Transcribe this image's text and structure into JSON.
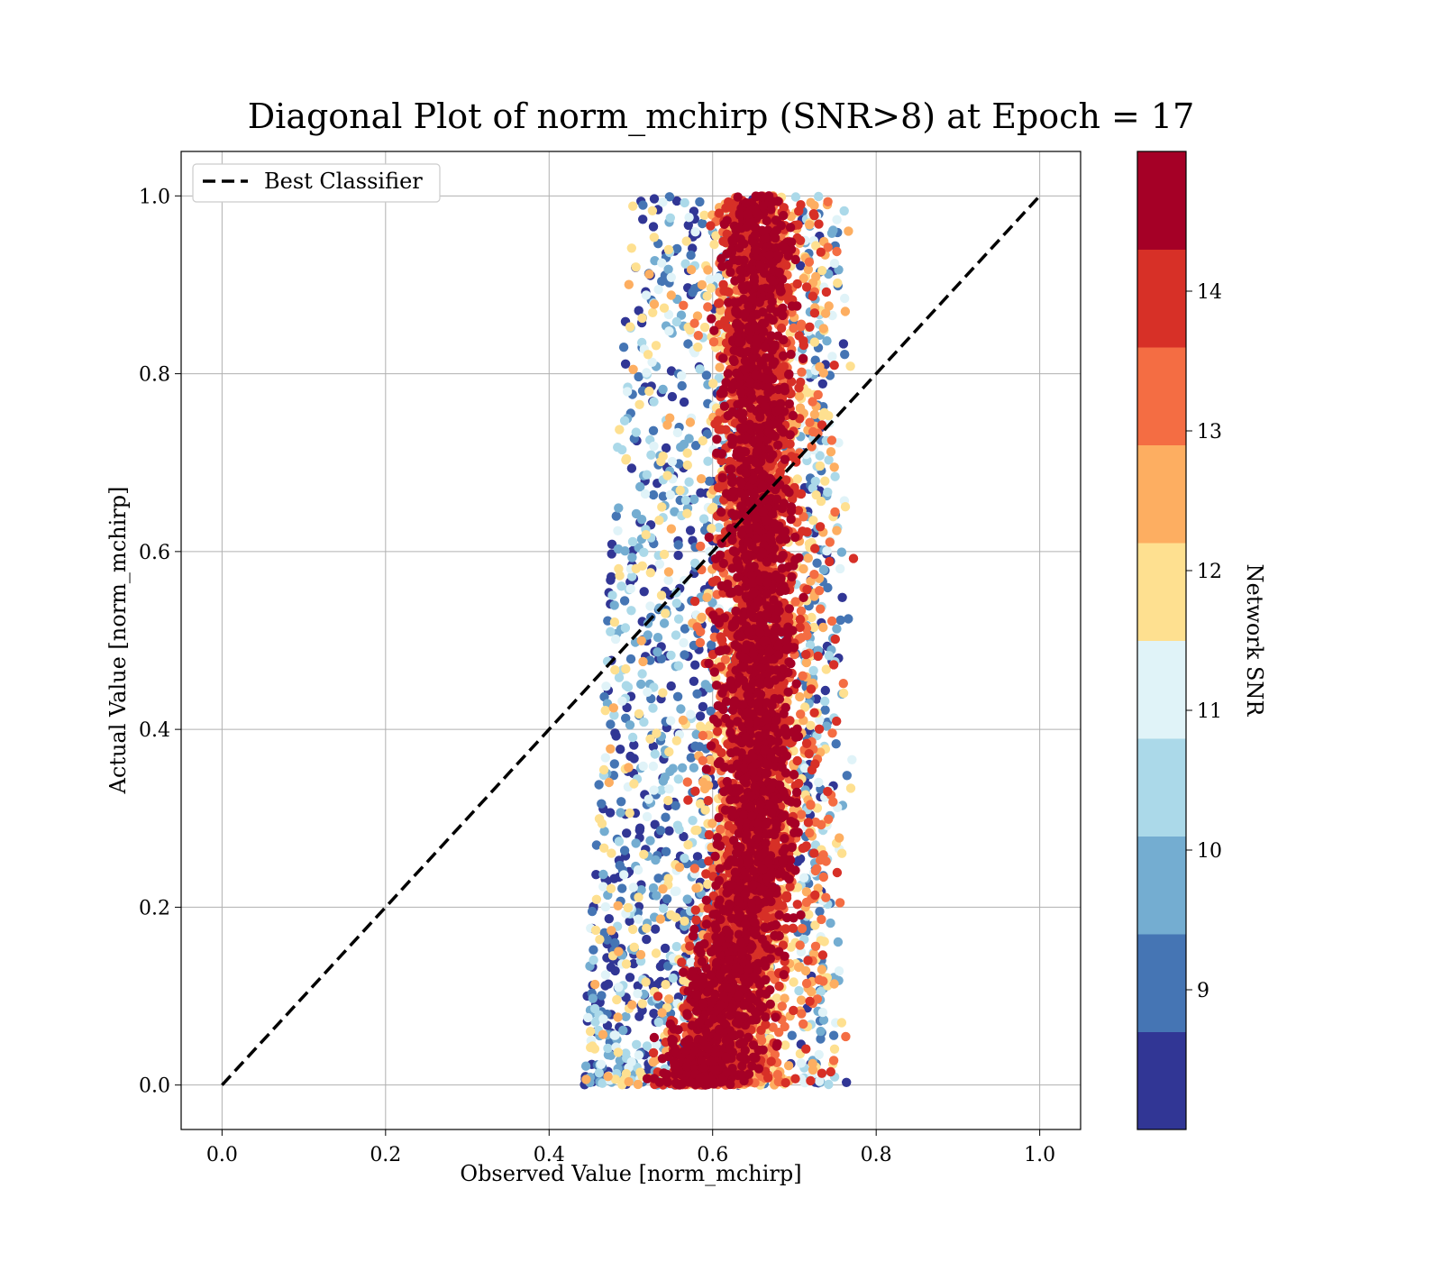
{
  "chart_data": {
    "type": "scatter",
    "title": "Diagonal Plot of norm_mchirp (SNR>8) at Epoch = 17",
    "xlabel": "Observed Value [norm_mchirp]",
    "ylabel": "Actual Value [norm_mchirp]",
    "xlim": [
      -0.05,
      1.05
    ],
    "ylim": [
      -0.05,
      1.05
    ],
    "xticks": [
      "0.0",
      "0.2",
      "0.4",
      "0.6",
      "0.8",
      "1.0"
    ],
    "yticks": [
      "0.0",
      "0.2",
      "0.4",
      "0.6",
      "0.8",
      "1.0"
    ],
    "grid": true,
    "legend": {
      "position": "top-left",
      "entries": [
        {
          "label": "Best Classifier",
          "style": "dashed",
          "color": "#000000"
        }
      ]
    },
    "reference_line": {
      "x": [
        0.0,
        1.0
      ],
      "y": [
        0.0,
        1.0
      ],
      "style": "dashed",
      "color": "#000000"
    },
    "colorbar": {
      "label": "Network SNR",
      "range": [
        8.0,
        15.0
      ],
      "ticks": [
        "9",
        "10",
        "11",
        "12",
        "13",
        "14"
      ],
      "colors": [
        "#313695",
        "#4575b4",
        "#74add1",
        "#abd9e9",
        "#e0f3f8",
        "#fee090",
        "#fdae61",
        "#f46d43",
        "#d73027",
        "#a50026"
      ]
    },
    "points_description_values": {
      "x_core_range": [
        0.6,
        0.72
      ],
      "y_range": [
        0.0,
        1.0
      ],
      "x_spread_range": [
        0.44,
        0.8
      ]
    }
  }
}
